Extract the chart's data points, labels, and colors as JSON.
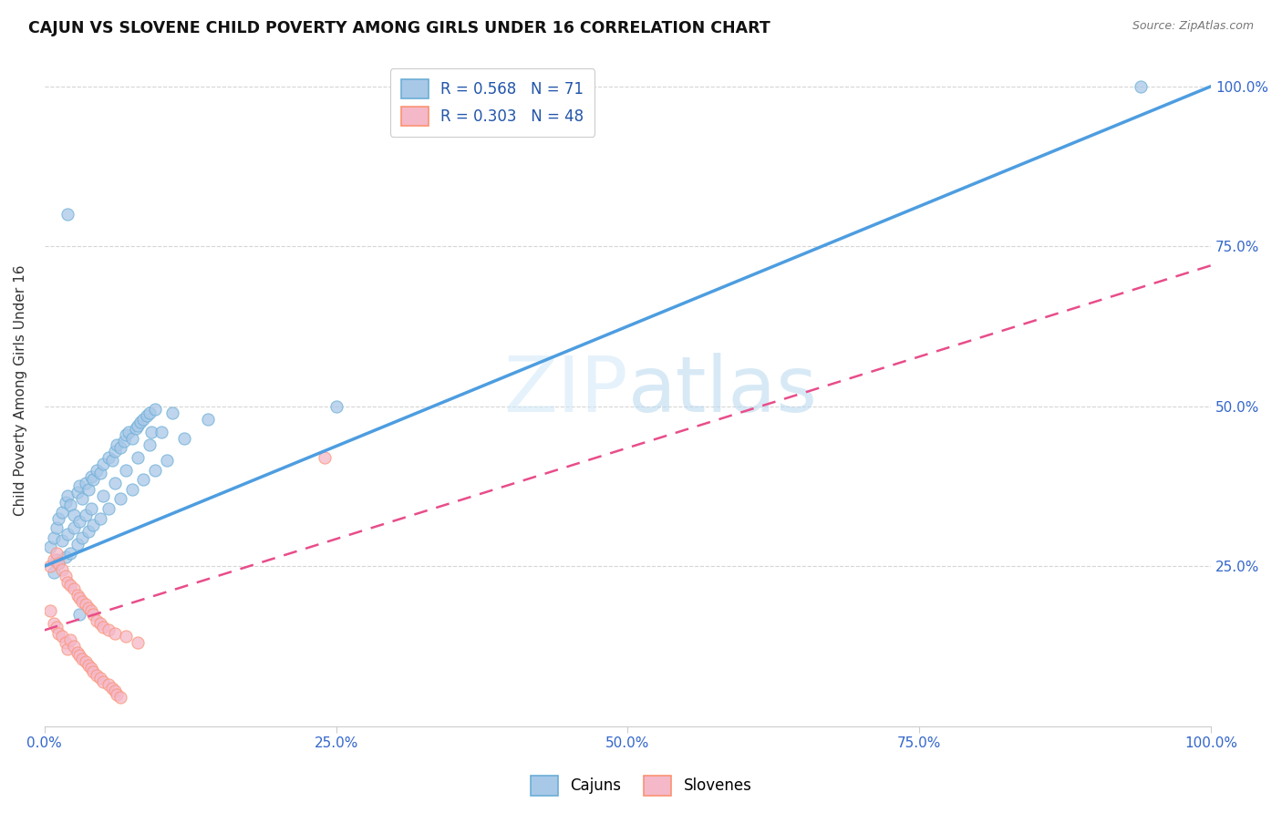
{
  "title": "CAJUN VS SLOVENE CHILD POVERTY AMONG GIRLS UNDER 16 CORRELATION CHART",
  "source": "Source: ZipAtlas.com",
  "ylabel": "Child Poverty Among Girls Under 16",
  "watermark_part1": "ZIP",
  "watermark_part2": "atlas",
  "cajun_R": 0.568,
  "cajun_N": 71,
  "slovene_R": 0.303,
  "slovene_N": 48,
  "cajun_color": "#a8c8e8",
  "cajun_edge_color": "#6baed6",
  "slovene_color": "#f4b8c8",
  "slovene_edge_color": "#fc9272",
  "cajun_line_color": "#4d9de0",
  "slovene_line_color": "#e84d8a",
  "cajun_line_x0": 0.0,
  "cajun_line_y0": 0.25,
  "cajun_line_x1": 1.0,
  "cajun_line_y1": 1.0,
  "slovene_line_x0": 0.0,
  "slovene_line_y0": 0.15,
  "slovene_line_x1": 1.0,
  "slovene_line_y1": 0.72,
  "xlim": [
    0.0,
    1.0
  ],
  "ylim": [
    0.0,
    1.05
  ],
  "xtick_values": [
    0.0,
    0.25,
    0.5,
    0.75,
    1.0
  ],
  "xtick_labels": [
    "0.0%",
    "25.0%",
    "50.0%",
    "75.0%",
    "100.0%"
  ],
  "ytick_values": [
    0.25,
    0.5,
    0.75,
    1.0
  ],
  "ytick_labels": [
    "25.0%",
    "50.0%",
    "75.0%",
    "100.0%"
  ],
  "grid_color": "#cccccc",
  "background_color": "#ffffff",
  "cajun_x": [
    0.005,
    0.008,
    0.01,
    0.012,
    0.015,
    0.018,
    0.02,
    0.022,
    0.025,
    0.028,
    0.03,
    0.032,
    0.035,
    0.038,
    0.04,
    0.042,
    0.045,
    0.048,
    0.05,
    0.055,
    0.058,
    0.06,
    0.062,
    0.065,
    0.068,
    0.07,
    0.072,
    0.075,
    0.078,
    0.08,
    0.082,
    0.085,
    0.088,
    0.09,
    0.092,
    0.095,
    0.01,
    0.015,
    0.02,
    0.025,
    0.03,
    0.035,
    0.04,
    0.05,
    0.06,
    0.07,
    0.08,
    0.09,
    0.1,
    0.11,
    0.008,
    0.012,
    0.018,
    0.022,
    0.028,
    0.032,
    0.038,
    0.042,
    0.048,
    0.055,
    0.065,
    0.075,
    0.085,
    0.095,
    0.105,
    0.12,
    0.14,
    0.25,
    0.02,
    0.94,
    0.03
  ],
  "cajun_y": [
    0.28,
    0.295,
    0.31,
    0.325,
    0.335,
    0.35,
    0.36,
    0.345,
    0.33,
    0.365,
    0.375,
    0.355,
    0.38,
    0.37,
    0.39,
    0.385,
    0.4,
    0.395,
    0.41,
    0.42,
    0.415,
    0.43,
    0.44,
    0.435,
    0.445,
    0.455,
    0.46,
    0.45,
    0.465,
    0.47,
    0.475,
    0.48,
    0.485,
    0.49,
    0.46,
    0.495,
    0.26,
    0.29,
    0.3,
    0.31,
    0.32,
    0.33,
    0.34,
    0.36,
    0.38,
    0.4,
    0.42,
    0.44,
    0.46,
    0.49,
    0.24,
    0.255,
    0.265,
    0.27,
    0.285,
    0.295,
    0.305,
    0.315,
    0.325,
    0.34,
    0.355,
    0.37,
    0.385,
    0.4,
    0.415,
    0.45,
    0.48,
    0.5,
    0.8,
    1.0,
    0.175
  ],
  "slovene_x": [
    0.005,
    0.008,
    0.01,
    0.012,
    0.015,
    0.018,
    0.02,
    0.022,
    0.025,
    0.028,
    0.03,
    0.032,
    0.035,
    0.038,
    0.04,
    0.042,
    0.045,
    0.048,
    0.05,
    0.055,
    0.058,
    0.06,
    0.062,
    0.065,
    0.005,
    0.008,
    0.01,
    0.012,
    0.015,
    0.018,
    0.02,
    0.022,
    0.025,
    0.028,
    0.03,
    0.032,
    0.035,
    0.038,
    0.04,
    0.042,
    0.045,
    0.048,
    0.05,
    0.055,
    0.06,
    0.07,
    0.08,
    0.24
  ],
  "slovene_y": [
    0.18,
    0.16,
    0.155,
    0.145,
    0.14,
    0.13,
    0.12,
    0.135,
    0.125,
    0.115,
    0.11,
    0.105,
    0.1,
    0.095,
    0.09,
    0.085,
    0.08,
    0.075,
    0.07,
    0.065,
    0.06,
    0.055,
    0.05,
    0.045,
    0.25,
    0.26,
    0.27,
    0.255,
    0.245,
    0.235,
    0.225,
    0.22,
    0.215,
    0.205,
    0.2,
    0.195,
    0.19,
    0.185,
    0.18,
    0.175,
    0.165,
    0.16,
    0.155,
    0.15,
    0.145,
    0.14,
    0.13,
    0.42
  ]
}
